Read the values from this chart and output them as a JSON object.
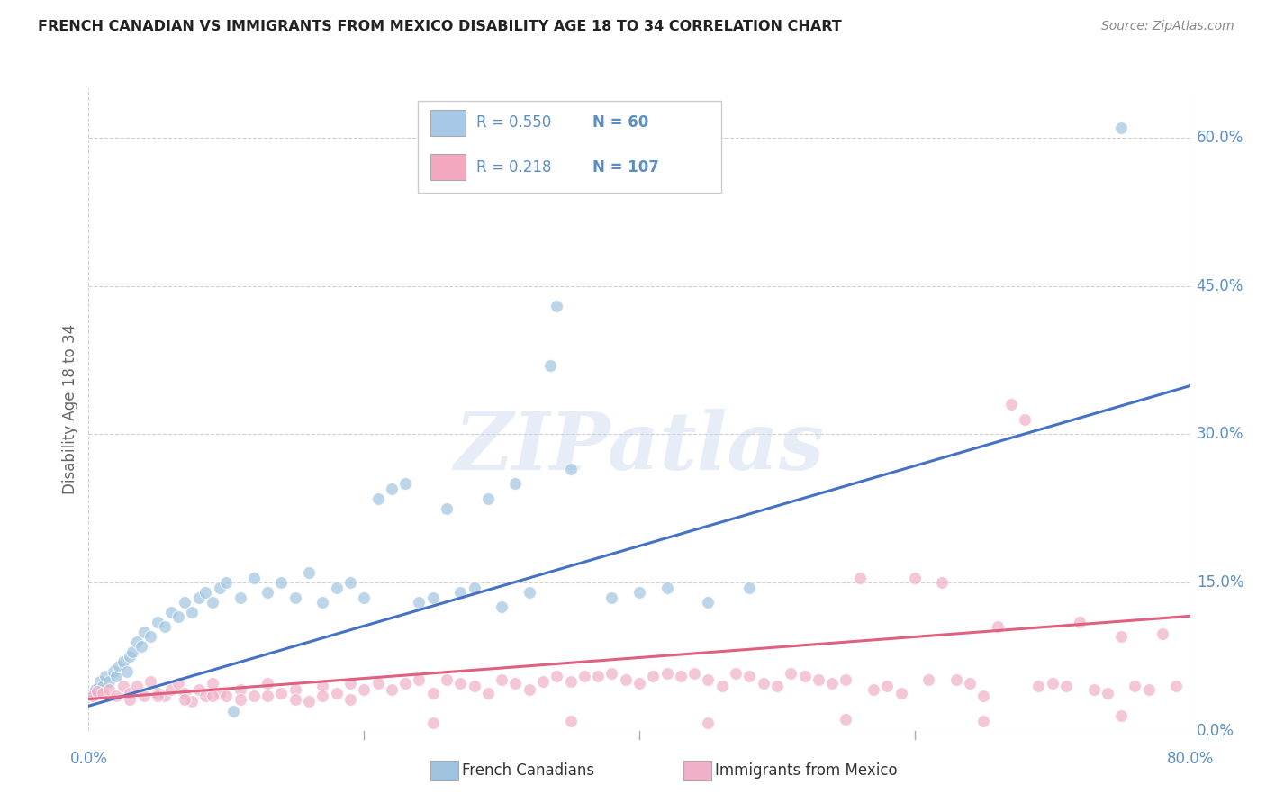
{
  "title": "FRENCH CANADIAN VS IMMIGRANTS FROM MEXICO DISABILITY AGE 18 TO 34 CORRELATION CHART",
  "source": "Source: ZipAtlas.com",
  "ylabel": "Disability Age 18 to 34",
  "ytick_labels": [
    "0.0%",
    "15.0%",
    "30.0%",
    "45.0%",
    "60.0%"
  ],
  "ytick_values": [
    0.0,
    15.0,
    30.0,
    45.0,
    60.0
  ],
  "xtick_labels": [
    "0.0%",
    "80.0%"
  ],
  "xlim": [
    0.0,
    80.0
  ],
  "ylim": [
    0.0,
    65.0
  ],
  "watermark": "ZIPatlas",
  "legend_entries": [
    {
      "label": "French Canadians",
      "R": "0.550",
      "N": "60",
      "color": "#a8c8e8"
    },
    {
      "label": "Immigrants from Mexico",
      "R": "0.218",
      "N": "107",
      "color": "#f4a8c0"
    }
  ],
  "blue_line_intercept": 2.5,
  "blue_line_slope": 0.405,
  "pink_line_intercept": 3.2,
  "pink_line_slope": 0.105,
  "blue_scatter": [
    [
      0.3,
      3.8
    ],
    [
      0.5,
      4.2
    ],
    [
      0.8,
      5.0
    ],
    [
      1.0,
      4.5
    ],
    [
      1.2,
      5.5
    ],
    [
      1.5,
      5.0
    ],
    [
      1.8,
      6.0
    ],
    [
      2.0,
      5.5
    ],
    [
      2.2,
      6.5
    ],
    [
      2.5,
      7.0
    ],
    [
      2.8,
      6.0
    ],
    [
      3.0,
      7.5
    ],
    [
      3.2,
      8.0
    ],
    [
      3.5,
      9.0
    ],
    [
      3.8,
      8.5
    ],
    [
      4.0,
      10.0
    ],
    [
      4.5,
      9.5
    ],
    [
      5.0,
      11.0
    ],
    [
      5.5,
      10.5
    ],
    [
      6.0,
      12.0
    ],
    [
      6.5,
      11.5
    ],
    [
      7.0,
      13.0
    ],
    [
      7.5,
      12.0
    ],
    [
      8.0,
      13.5
    ],
    [
      8.5,
      14.0
    ],
    [
      9.0,
      13.0
    ],
    [
      9.5,
      14.5
    ],
    [
      10.0,
      15.0
    ],
    [
      11.0,
      13.5
    ],
    [
      12.0,
      15.5
    ],
    [
      13.0,
      14.0
    ],
    [
      14.0,
      15.0
    ],
    [
      15.0,
      13.5
    ],
    [
      16.0,
      16.0
    ],
    [
      17.0,
      13.0
    ],
    [
      18.0,
      14.5
    ],
    [
      19.0,
      15.0
    ],
    [
      20.0,
      13.5
    ],
    [
      21.0,
      23.5
    ],
    [
      22.0,
      24.5
    ],
    [
      23.0,
      25.0
    ],
    [
      24.0,
      13.0
    ],
    [
      25.0,
      13.5
    ],
    [
      26.0,
      22.5
    ],
    [
      27.0,
      14.0
    ],
    [
      28.0,
      14.5
    ],
    [
      29.0,
      23.5
    ],
    [
      30.0,
      12.5
    ],
    [
      31.0,
      25.0
    ],
    [
      32.0,
      14.0
    ],
    [
      33.5,
      37.0
    ],
    [
      34.0,
      43.0
    ],
    [
      35.0,
      26.5
    ],
    [
      38.0,
      13.5
    ],
    [
      40.0,
      14.0
    ],
    [
      42.0,
      14.5
    ],
    [
      45.0,
      13.0
    ],
    [
      48.0,
      14.5
    ],
    [
      75.0,
      61.0
    ],
    [
      10.5,
      2.0
    ]
  ],
  "pink_scatter": [
    [
      0.3,
      3.5
    ],
    [
      0.6,
      4.0
    ],
    [
      1.0,
      3.8
    ],
    [
      1.5,
      4.2
    ],
    [
      2.0,
      3.5
    ],
    [
      2.5,
      4.5
    ],
    [
      3.0,
      3.8
    ],
    [
      3.5,
      4.5
    ],
    [
      4.0,
      3.5
    ],
    [
      4.5,
      5.0
    ],
    [
      5.0,
      3.8
    ],
    [
      5.5,
      3.5
    ],
    [
      6.0,
      4.2
    ],
    [
      6.5,
      4.8
    ],
    [
      7.0,
      3.8
    ],
    [
      7.5,
      3.0
    ],
    [
      8.0,
      4.2
    ],
    [
      8.5,
      3.5
    ],
    [
      9.0,
      4.8
    ],
    [
      9.5,
      3.8
    ],
    [
      10.0,
      3.5
    ],
    [
      11.0,
      4.2
    ],
    [
      12.0,
      3.5
    ],
    [
      13.0,
      4.8
    ],
    [
      14.0,
      3.8
    ],
    [
      15.0,
      4.2
    ],
    [
      16.0,
      3.0
    ],
    [
      17.0,
      4.5
    ],
    [
      18.0,
      3.8
    ],
    [
      19.0,
      4.8
    ],
    [
      20.0,
      4.2
    ],
    [
      21.0,
      4.8
    ],
    [
      22.0,
      4.2
    ],
    [
      23.0,
      4.8
    ],
    [
      24.0,
      5.2
    ],
    [
      25.0,
      3.8
    ],
    [
      26.0,
      5.2
    ],
    [
      27.0,
      4.8
    ],
    [
      28.0,
      4.5
    ],
    [
      29.0,
      3.8
    ],
    [
      30.0,
      5.2
    ],
    [
      31.0,
      4.8
    ],
    [
      32.0,
      4.2
    ],
    [
      33.0,
      5.0
    ],
    [
      34.0,
      5.5
    ],
    [
      35.0,
      5.0
    ],
    [
      36.0,
      5.5
    ],
    [
      37.0,
      5.5
    ],
    [
      38.0,
      5.8
    ],
    [
      39.0,
      5.2
    ],
    [
      40.0,
      4.8
    ],
    [
      41.0,
      5.5
    ],
    [
      42.0,
      5.8
    ],
    [
      43.0,
      5.5
    ],
    [
      44.0,
      5.8
    ],
    [
      45.0,
      5.2
    ],
    [
      46.0,
      4.5
    ],
    [
      47.0,
      5.8
    ],
    [
      48.0,
      5.5
    ],
    [
      49.0,
      4.8
    ],
    [
      50.0,
      4.5
    ],
    [
      51.0,
      5.8
    ],
    [
      52.0,
      5.5
    ],
    [
      53.0,
      5.2
    ],
    [
      54.0,
      4.8
    ],
    [
      55.0,
      5.2
    ],
    [
      56.0,
      15.5
    ],
    [
      57.0,
      4.2
    ],
    [
      58.0,
      4.5
    ],
    [
      59.0,
      3.8
    ],
    [
      60.0,
      15.5
    ],
    [
      61.0,
      5.2
    ],
    [
      62.0,
      15.0
    ],
    [
      63.0,
      5.2
    ],
    [
      64.0,
      4.8
    ],
    [
      65.0,
      3.5
    ],
    [
      66.0,
      10.5
    ],
    [
      67.0,
      33.0
    ],
    [
      68.0,
      31.5
    ],
    [
      69.0,
      4.5
    ],
    [
      70.0,
      4.8
    ],
    [
      71.0,
      4.5
    ],
    [
      72.0,
      11.0
    ],
    [
      73.0,
      4.2
    ],
    [
      74.0,
      3.8
    ],
    [
      75.0,
      9.5
    ],
    [
      76.0,
      4.5
    ],
    [
      77.0,
      4.2
    ],
    [
      78.0,
      9.8
    ],
    [
      79.0,
      4.5
    ],
    [
      25.0,
      0.8
    ],
    [
      35.0,
      1.0
    ],
    [
      45.0,
      0.8
    ],
    [
      55.0,
      1.2
    ],
    [
      65.0,
      1.0
    ],
    [
      75.0,
      1.5
    ],
    [
      3.0,
      3.2
    ],
    [
      5.0,
      3.5
    ],
    [
      7.0,
      3.2
    ],
    [
      9.0,
      3.5
    ],
    [
      11.0,
      3.2
    ],
    [
      13.0,
      3.5
    ],
    [
      15.0,
      3.2
    ],
    [
      17.0,
      3.5
    ],
    [
      19.0,
      3.2
    ]
  ],
  "bg_color": "#ffffff",
  "grid_color": "#d0d0d0",
  "blue_color": "#a0c4e0",
  "pink_color": "#f0b0c8",
  "line_blue": "#4472c4",
  "line_pink": "#e06080",
  "axis_label_color": "#5b8ec4",
  "ylabel_color": "#666666",
  "title_color": "#222222",
  "source_color": "#888888"
}
